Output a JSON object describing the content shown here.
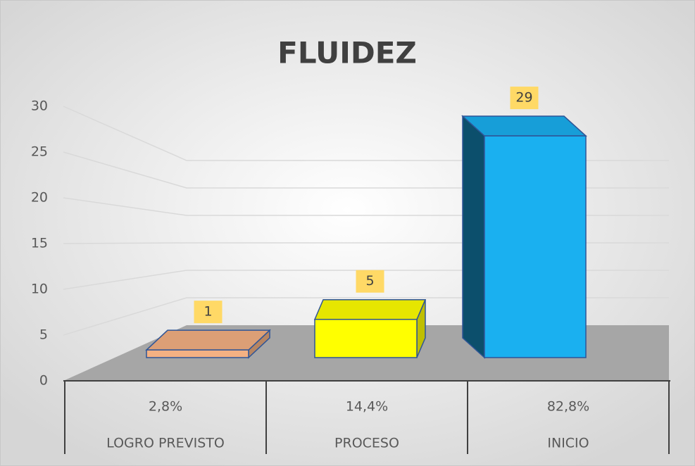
{
  "chart_data": {
    "type": "bar3d",
    "title": "FLUIDEZ",
    "categories": [
      "LOGRO PREVISTO",
      "PROCESO",
      "INICIO"
    ],
    "category_percentages": [
      "2,8%",
      "14,4%",
      "82,8%"
    ],
    "values": [
      1,
      5,
      29
    ],
    "colors": [
      "#f4b183",
      "#ffff00",
      "#1ab0f0"
    ],
    "ylim": [
      0,
      30
    ],
    "yticks": [
      0,
      5,
      10,
      15,
      20,
      25,
      30
    ],
    "grid": true
  }
}
